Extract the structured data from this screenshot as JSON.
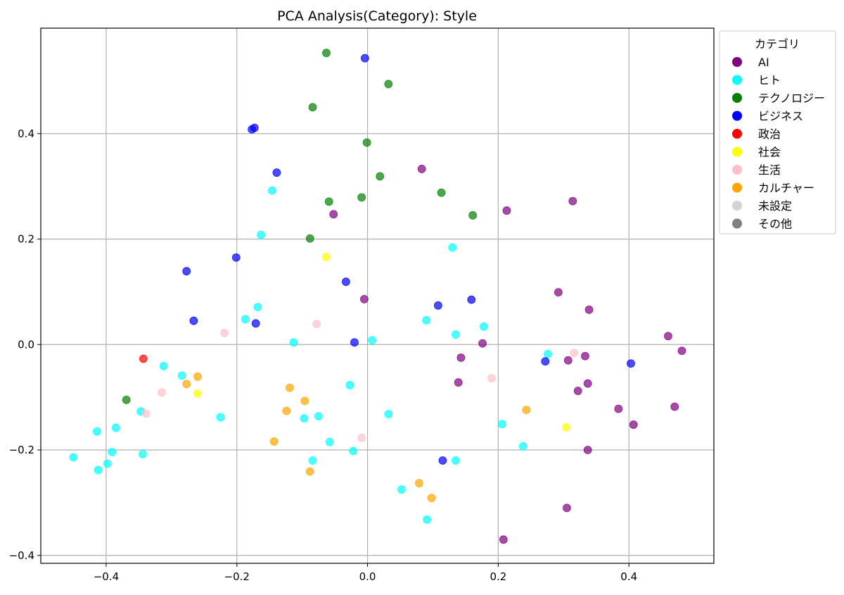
{
  "chart_data": {
    "type": "scatter",
    "title": "PCA Analysis(Category): Style",
    "xlabel": "",
    "ylabel": "",
    "xlim": [
      -0.5,
      0.53
    ],
    "ylim": [
      -0.415,
      0.6
    ],
    "xticks": [
      -0.4,
      -0.2,
      0.0,
      0.2,
      0.4
    ],
    "xtick_labels": [
      "−0.4",
      "−0.2",
      "0.0",
      "0.2",
      "0.4"
    ],
    "yticks": [
      -0.4,
      -0.2,
      0.0,
      0.2,
      0.4
    ],
    "ytick_labels": [
      "−0.4",
      "−0.2",
      "0.0",
      "0.2",
      "0.4"
    ],
    "grid": true,
    "legend": {
      "title": "カテゴリ",
      "placement": "outside-top-right",
      "entries": [
        {
          "label": "AI",
          "color": "#800080"
        },
        {
          "label": "ヒト",
          "color": "#00ffff"
        },
        {
          "label": "テクノロジー",
          "color": "#008000"
        },
        {
          "label": "ビジネス",
          "color": "#0000ff"
        },
        {
          "label": "政治",
          "color": "#ff0000"
        },
        {
          "label": "社会",
          "color": "#ffff00"
        },
        {
          "label": "生活",
          "color": "#ffc0cb"
        },
        {
          "label": "カルチャー",
          "color": "#ffa500"
        },
        {
          "label": "未設定",
          "color": "#d3d3d3"
        },
        {
          "label": "その他",
          "color": "#808080"
        }
      ]
    },
    "series": [
      {
        "name": "AI",
        "color": "#800080",
        "points": [
          [
            0.083,
            0.333
          ],
          [
            0.213,
            0.254
          ],
          [
            0.314,
            0.272
          ],
          [
            -0.052,
            0.247
          ],
          [
            0.292,
            0.099
          ],
          [
            0.339,
            0.066
          ],
          [
            -0.005,
            0.086
          ],
          [
            0.176,
            0.002
          ],
          [
            0.143,
            -0.025
          ],
          [
            0.307,
            -0.03
          ],
          [
            0.333,
            -0.022
          ],
          [
            0.46,
            0.016
          ],
          [
            0.481,
            -0.012
          ],
          [
            0.139,
            -0.072
          ],
          [
            0.322,
            -0.088
          ],
          [
            0.337,
            -0.074
          ],
          [
            0.384,
            -0.122
          ],
          [
            0.407,
            -0.152
          ],
          [
            0.47,
            -0.118
          ],
          [
            0.337,
            -0.2
          ],
          [
            0.305,
            -0.31
          ],
          [
            0.208,
            -0.37
          ]
        ]
      },
      {
        "name": "ヒト",
        "color": "#00ffff",
        "points": [
          [
            -0.146,
            0.292
          ],
          [
            -0.163,
            0.208
          ],
          [
            0.13,
            0.184
          ],
          [
            -0.168,
            0.071
          ],
          [
            -0.187,
            0.048
          ],
          [
            0.09,
            0.046
          ],
          [
            0.135,
            0.019
          ],
          [
            0.178,
            0.034
          ],
          [
            -0.113,
            0.004
          ],
          [
            0.007,
            0.008
          ],
          [
            0.276,
            -0.018
          ],
          [
            -0.312,
            -0.041
          ],
          [
            -0.284,
            -0.059
          ],
          [
            -0.027,
            -0.077
          ],
          [
            -0.347,
            -0.127
          ],
          [
            -0.225,
            -0.138
          ],
          [
            -0.075,
            -0.136
          ],
          [
            -0.097,
            -0.14
          ],
          [
            0.032,
            -0.132
          ],
          [
            0.206,
            -0.151
          ],
          [
            -0.414,
            -0.165
          ],
          [
            -0.385,
            -0.158
          ],
          [
            -0.058,
            -0.185
          ],
          [
            0.238,
            -0.193
          ],
          [
            -0.022,
            -0.202
          ],
          [
            -0.391,
            -0.204
          ],
          [
            -0.344,
            -0.208
          ],
          [
            -0.084,
            -0.22
          ],
          [
            0.135,
            -0.22
          ],
          [
            -0.45,
            -0.214
          ],
          [
            -0.398,
            -0.226
          ],
          [
            -0.412,
            -0.238
          ],
          [
            0.052,
            -0.275
          ],
          [
            0.091,
            -0.332
          ]
        ]
      },
      {
        "name": "テクノロジー",
        "color": "#008000",
        "points": [
          [
            -0.063,
            0.553
          ],
          [
            0.032,
            0.494
          ],
          [
            -0.084,
            0.45
          ],
          [
            -0.001,
            0.383
          ],
          [
            0.019,
            0.319
          ],
          [
            0.113,
            0.288
          ],
          [
            -0.009,
            0.279
          ],
          [
            -0.059,
            0.271
          ],
          [
            0.161,
            0.245
          ],
          [
            -0.088,
            0.201
          ],
          [
            -0.369,
            -0.105
          ]
        ]
      },
      {
        "name": "ビジネス",
        "color": "#0000ff",
        "points": [
          [
            -0.004,
            0.543
          ],
          [
            -0.173,
            0.411
          ],
          [
            -0.177,
            0.408
          ],
          [
            -0.139,
            0.326
          ],
          [
            -0.201,
            0.165
          ],
          [
            -0.277,
            0.139
          ],
          [
            -0.033,
            0.119
          ],
          [
            -0.266,
            0.045
          ],
          [
            -0.171,
            0.04
          ],
          [
            0.108,
            0.074
          ],
          [
            0.159,
            0.085
          ],
          [
            -0.02,
            0.004
          ],
          [
            0.272,
            -0.032
          ],
          [
            0.403,
            -0.036
          ],
          [
            0.115,
            -0.22
          ]
        ]
      },
      {
        "name": "政治",
        "color": "#ff0000",
        "points": [
          [
            -0.343,
            -0.027
          ]
        ]
      },
      {
        "name": "社会",
        "color": "#ffff00",
        "points": [
          [
            -0.063,
            0.166
          ],
          [
            -0.26,
            -0.093
          ],
          [
            0.304,
            -0.157
          ]
        ]
      },
      {
        "name": "生活",
        "color": "#ffc0cb",
        "points": [
          [
            -0.219,
            0.022
          ],
          [
            -0.078,
            0.039
          ],
          [
            0.316,
            -0.016
          ],
          [
            0.19,
            -0.064
          ],
          [
            -0.315,
            -0.091
          ],
          [
            -0.339,
            -0.131
          ],
          [
            -0.009,
            -0.177
          ]
        ]
      },
      {
        "name": "カルチャー",
        "color": "#ffa500",
        "points": [
          [
            -0.26,
            -0.061
          ],
          [
            -0.277,
            -0.075
          ],
          [
            -0.119,
            -0.082
          ],
          [
            -0.096,
            -0.107
          ],
          [
            -0.124,
            -0.126
          ],
          [
            0.243,
            -0.124
          ],
          [
            -0.143,
            -0.184
          ],
          [
            -0.088,
            -0.241
          ],
          [
            0.079,
            -0.263
          ],
          [
            0.098,
            -0.291
          ]
        ]
      }
    ]
  }
}
